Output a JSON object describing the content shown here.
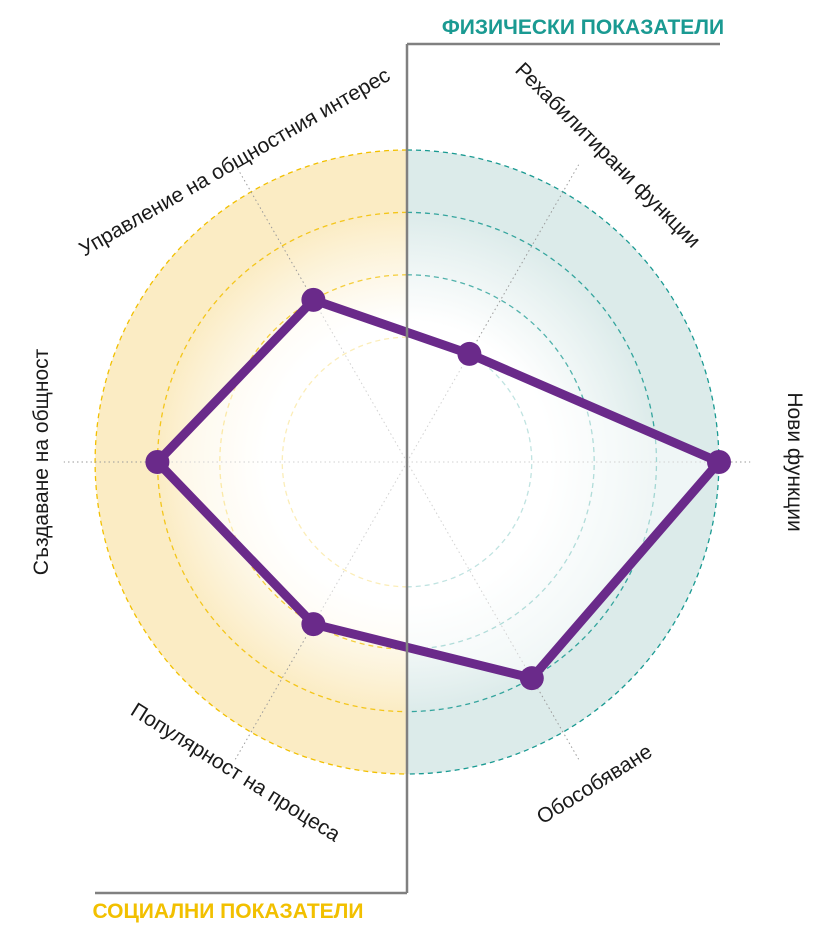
{
  "chart_data": {
    "type": "radar",
    "axes": [
      "Нови функции",
      "Рехабилитирани функции",
      "Управление на общностния интерес",
      "Създаване на общност",
      "Популярност на процеса",
      "Обособяване"
    ],
    "values": [
      5,
      2,
      3,
      4,
      3,
      4
    ],
    "max": 5,
    "groups": [
      {
        "name": "ФИЗИЧЕСКИ ПОКАЗАТЕЛИ",
        "color": "#1a9a92",
        "fill": "#dcebea"
      },
      {
        "name": "СОЦИАЛНИ ПОКАЗАТЕЛИ",
        "color": "#f2c000",
        "fill": "#fbecc4"
      }
    ],
    "series_color": "#6a2a8a",
    "ring_color_physical": "#1a9a92",
    "ring_color_social": "#f2c000",
    "divider_color": "#808080"
  }
}
